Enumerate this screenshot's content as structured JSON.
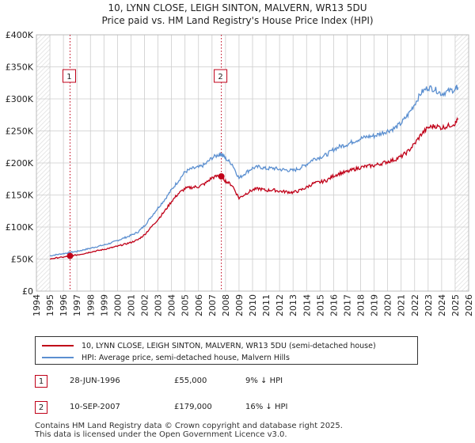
{
  "chart_data": {
    "type": "line",
    "title": "10, LYNN CLOSE, LEIGH SINTON, MALVERN, WR13 5DU",
    "subtitle": "Price paid vs. HM Land Registry's House Price Index (HPI)",
    "xlabel": "",
    "ylabel": "",
    "xlim": [
      1994,
      2026
    ],
    "ylim": [
      0,
      400000
    ],
    "x_ticks": [
      1994,
      1995,
      1996,
      1997,
      1998,
      1999,
      2000,
      2001,
      2002,
      2003,
      2004,
      2005,
      2006,
      2007,
      2008,
      2009,
      2010,
      2011,
      2012,
      2013,
      2014,
      2015,
      2016,
      2017,
      2018,
      2019,
      2020,
      2021,
      2022,
      2023,
      2024,
      2025,
      2026
    ],
    "y_ticks": [
      0,
      50000,
      100000,
      150000,
      200000,
      250000,
      300000,
      350000,
      400000
    ],
    "y_tick_labels": [
      "£0",
      "£50K",
      "£100K",
      "£150K",
      "£200K",
      "£250K",
      "£300K",
      "£350K",
      "£400K"
    ],
    "grid": true,
    "shaded_ranges": [
      [
        1994,
        1995
      ],
      [
        2025,
        2026
      ]
    ],
    "series": [
      {
        "name": "10, LYNN CLOSE, LEIGH SINTON, MALVERN, WR13 5DU (semi-detached house)",
        "color": "#c00018",
        "x": [
          1995.0,
          1995.5,
          1996.0,
          1996.49,
          1997.0,
          1997.5,
          1998.0,
          1998.5,
          1999.0,
          1999.5,
          2000.0,
          2000.5,
          2001.0,
          2001.5,
          2002.0,
          2002.5,
          2003.0,
          2003.5,
          2004.0,
          2004.5,
          2005.0,
          2005.5,
          2006.0,
          2006.5,
          2007.0,
          2007.5,
          2007.69,
          2008.0,
          2008.5,
          2009.0,
          2009.5,
          2010.0,
          2010.5,
          2011.0,
          2011.5,
          2012.0,
          2012.5,
          2013.0,
          2013.5,
          2014.0,
          2014.5,
          2015.0,
          2015.5,
          2016.0,
          2016.5,
          2017.0,
          2017.5,
          2018.0,
          2018.5,
          2019.0,
          2019.5,
          2020.0,
          2020.5,
          2021.0,
          2021.5,
          2022.0,
          2022.5,
          2023.0,
          2023.5,
          2024.0,
          2024.5,
          2025.0,
          2025.2
        ],
        "values": [
          50000,
          52000,
          53000,
          55000,
          56500,
          58500,
          61000,
          63000,
          65000,
          67500,
          70000,
          73000,
          76000,
          80000,
          88000,
          100000,
          112000,
          125000,
          140000,
          152000,
          160000,
          162000,
          163000,
          168000,
          177000,
          180000,
          179000,
          172000,
          165000,
          145000,
          152000,
          158000,
          160000,
          157000,
          158000,
          156000,
          155000,
          154000,
          157000,
          162000,
          168000,
          170000,
          173000,
          180000,
          184000,
          186000,
          190000,
          193000,
          195000,
          196000,
          199000,
          202000,
          205000,
          210000,
          218000,
          230000,
          245000,
          255000,
          258000,
          255000,
          258000,
          262000,
          268000
        ]
      },
      {
        "name": "HPI: Average price, semi-detached house, Malvern Hills",
        "color": "#5b8fd0",
        "x": [
          1995.0,
          1995.5,
          1996.0,
          1996.49,
          1997.0,
          1997.5,
          1998.0,
          1998.5,
          1999.0,
          1999.5,
          2000.0,
          2000.5,
          2001.0,
          2001.5,
          2002.0,
          2002.5,
          2003.0,
          2003.5,
          2004.0,
          2004.5,
          2005.0,
          2005.5,
          2006.0,
          2006.5,
          2007.0,
          2007.5,
          2007.69,
          2008.0,
          2008.5,
          2009.0,
          2009.5,
          2010.0,
          2010.5,
          2011.0,
          2011.5,
          2012.0,
          2012.5,
          2013.0,
          2013.5,
          2014.0,
          2014.5,
          2015.0,
          2015.5,
          2016.0,
          2016.5,
          2017.0,
          2017.5,
          2018.0,
          2018.5,
          2019.0,
          2019.5,
          2020.0,
          2020.5,
          2021.0,
          2021.5,
          2022.0,
          2022.5,
          2023.0,
          2023.5,
          2024.0,
          2024.5,
          2025.0,
          2025.2
        ],
        "values": [
          55000,
          57000,
          58500,
          60500,
          62000,
          64500,
          67000,
          69500,
          72000,
          75000,
          79000,
          83000,
          87000,
          92000,
          102000,
          116000,
          130000,
          143000,
          158000,
          172000,
          186000,
          191000,
          193000,
          198000,
          208000,
          213000,
          214000,
          207000,
          198000,
          176000,
          185000,
          192000,
          194000,
          191000,
          192000,
          190000,
          189000,
          188000,
          192000,
          198000,
          206000,
          209000,
          213000,
          221000,
          226000,
          229000,
          234000,
          238000,
          241000,
          242000,
          246000,
          250000,
          254000,
          262000,
          275000,
          292000,
          310000,
          318000,
          315000,
          308000,
          312000,
          315000,
          318000
        ]
      }
    ],
    "annotations": [
      {
        "label": "1",
        "x": 1996.49,
        "price": 55000
      },
      {
        "label": "2",
        "x": 2007.69,
        "price": 179000
      }
    ]
  },
  "transactions": [
    {
      "id": "1",
      "date": "28-JUN-1996",
      "price": "£55,000",
      "hpi": "9% ↓ HPI"
    },
    {
      "id": "2",
      "date": "10-SEP-2007",
      "price": "£179,000",
      "hpi": "16% ↓ HPI"
    }
  ],
  "footer": {
    "line1": "Contains HM Land Registry data © Crown copyright and database right 2025.",
    "line2": "This data is licensed under the Open Government Licence v3.0."
  },
  "colors": {
    "price_line": "#c00018",
    "hpi_line": "#5b8fd0",
    "grid": "#cccccc",
    "hatch": "#e6e6e6"
  }
}
